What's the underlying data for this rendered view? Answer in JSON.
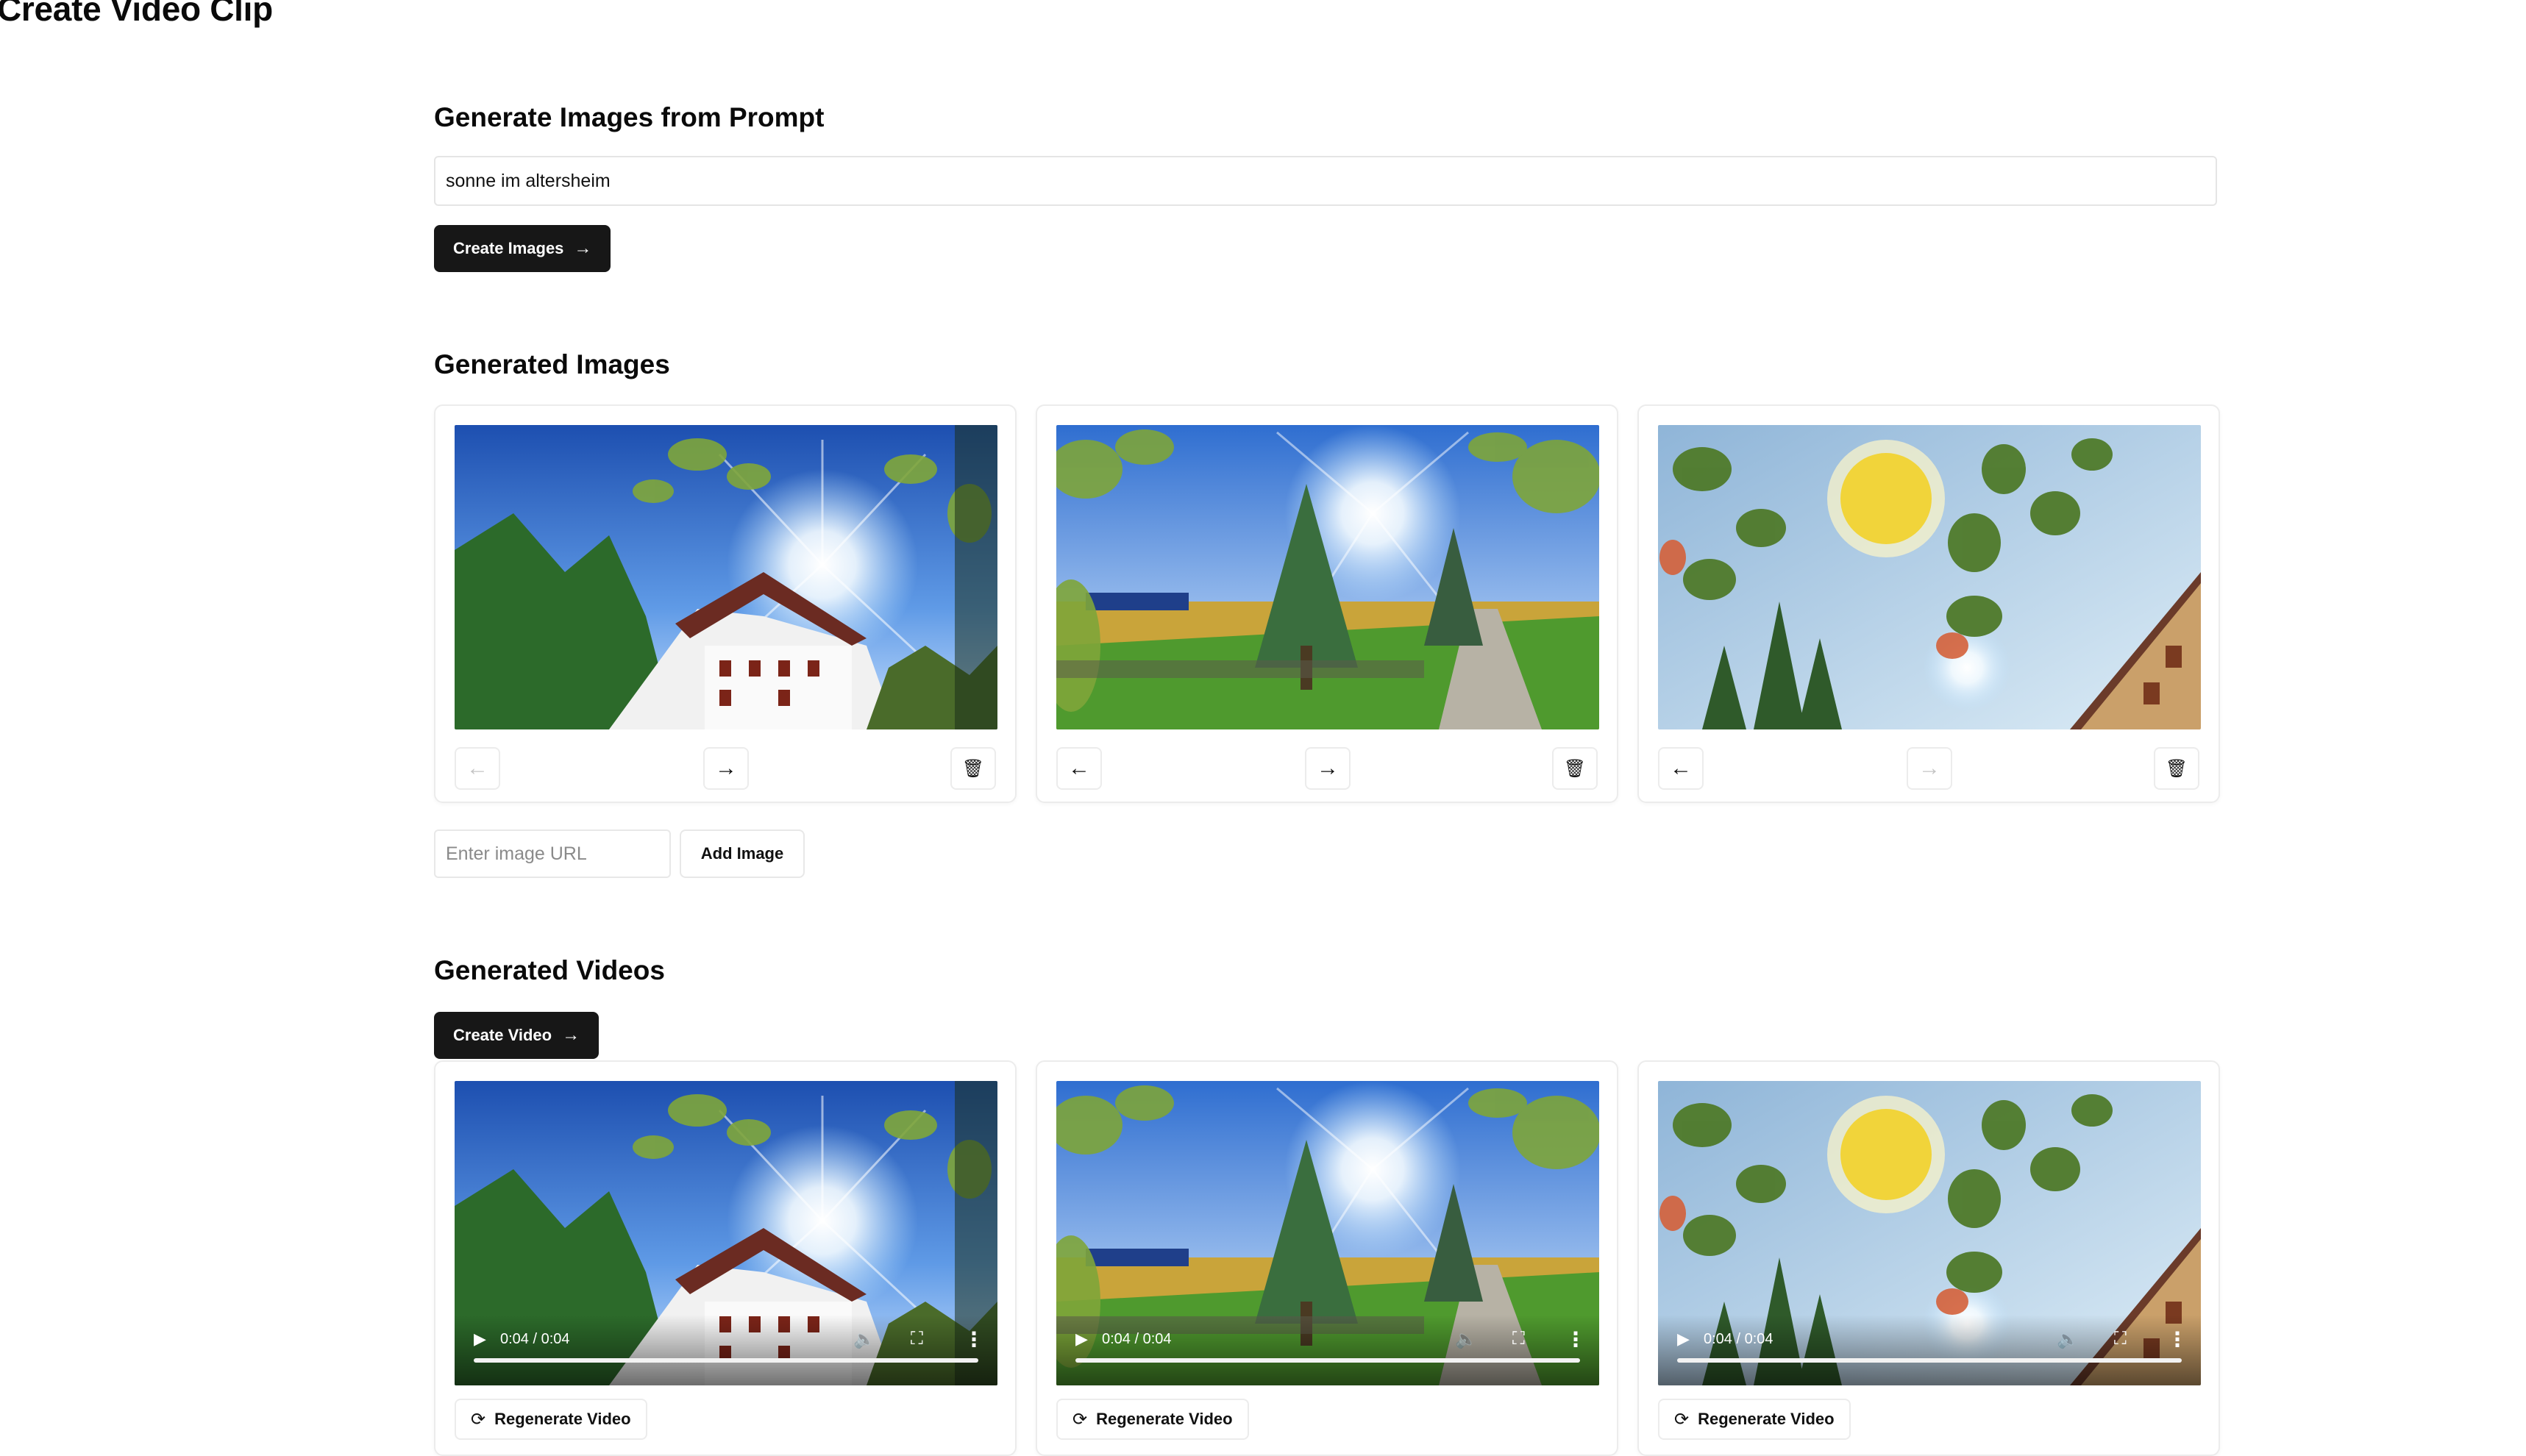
{
  "page": {
    "title": "Create Video Clip"
  },
  "prompt_section": {
    "title": "Generate Images from Prompt",
    "prompt_value": "sonne im altersheim",
    "create_images_label": "Create Images",
    "create_images_icon": "arrow-right-icon"
  },
  "images_section": {
    "title": "Generated Images",
    "cards": [
      {
        "scene": "sunburst-house",
        "move_left_enabled": false,
        "move_right_enabled": true
      },
      {
        "scene": "country-road",
        "move_left_enabled": true,
        "move_right_enabled": true
      },
      {
        "scene": "sun-leaves",
        "move_left_enabled": true,
        "move_right_enabled": false
      }
    ],
    "move_left_glyph": "←",
    "move_right_glyph": "→",
    "delete_glyph": "🗑",
    "url_placeholder": "Enter image URL",
    "add_image_label": "Add Image"
  },
  "videos_section": {
    "title": "Generated Videos",
    "create_video_label": "Create Video",
    "create_video_icon": "arrow-right-icon",
    "videos": [
      {
        "time": "0:04 / 0:04",
        "progress": 1.0,
        "regenerate_label": "Regenerate Video"
      },
      {
        "time": "0:04 / 0:04",
        "progress": 1.0,
        "regenerate_label": "Regenerate Video"
      },
      {
        "time": "0:04 / 0:04",
        "progress": 1.0,
        "regenerate_label": "Regenerate Video"
      }
    ]
  },
  "colors": {
    "primary_button": "#171717",
    "border": "#ececec",
    "text": "#0a0a0a",
    "placeholder": "#8a8a8a"
  }
}
